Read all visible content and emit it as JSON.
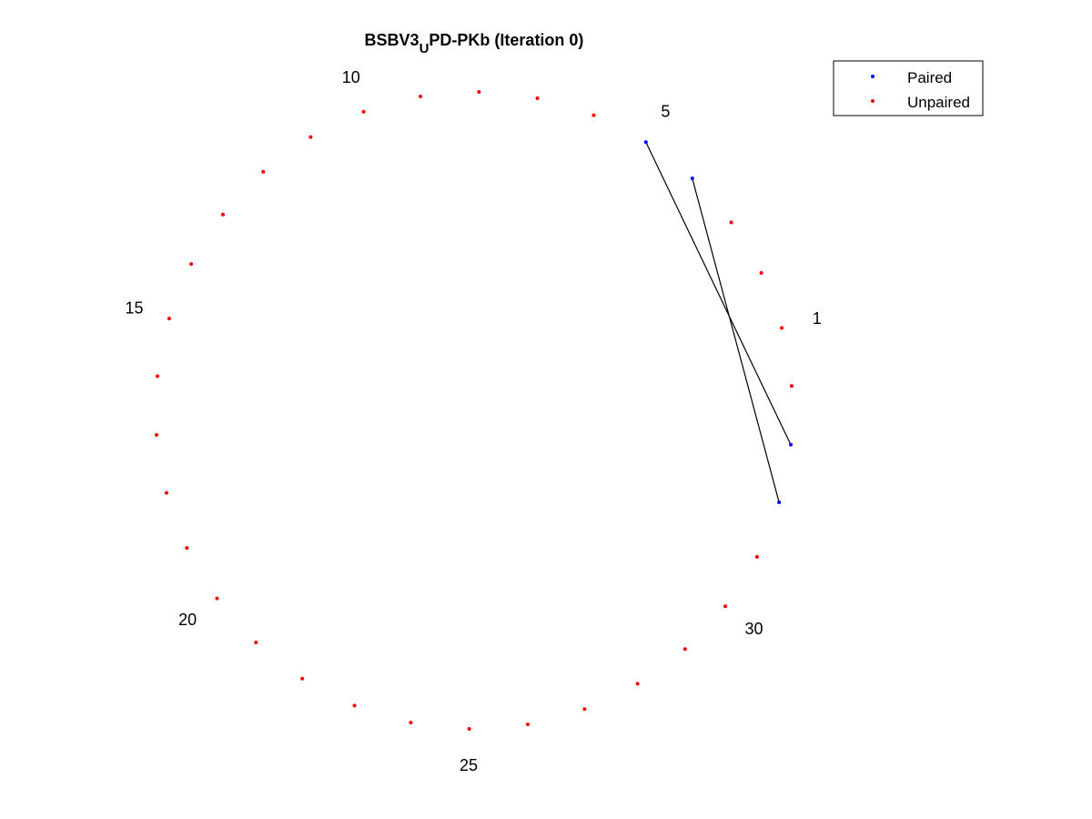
{
  "chart_data": {
    "type": "scatter",
    "title": {
      "before": "BSBV3",
      "subscript": "U",
      "after": "PD-PKb (Iteration 0)"
    },
    "sequence_length": 34,
    "start_index": 1,
    "index_labels": [
      1,
      5,
      10,
      15,
      20,
      25,
      30
    ],
    "pairs": [
      [
        5,
        33
      ],
      [
        4,
        32
      ]
    ],
    "series": [
      {
        "name": "Paired",
        "color": "#0000ff"
      },
      {
        "name": "Unpaired",
        "color": "#ff0000"
      }
    ],
    "arc_color": "#000000",
    "legend_position": "top-right"
  }
}
